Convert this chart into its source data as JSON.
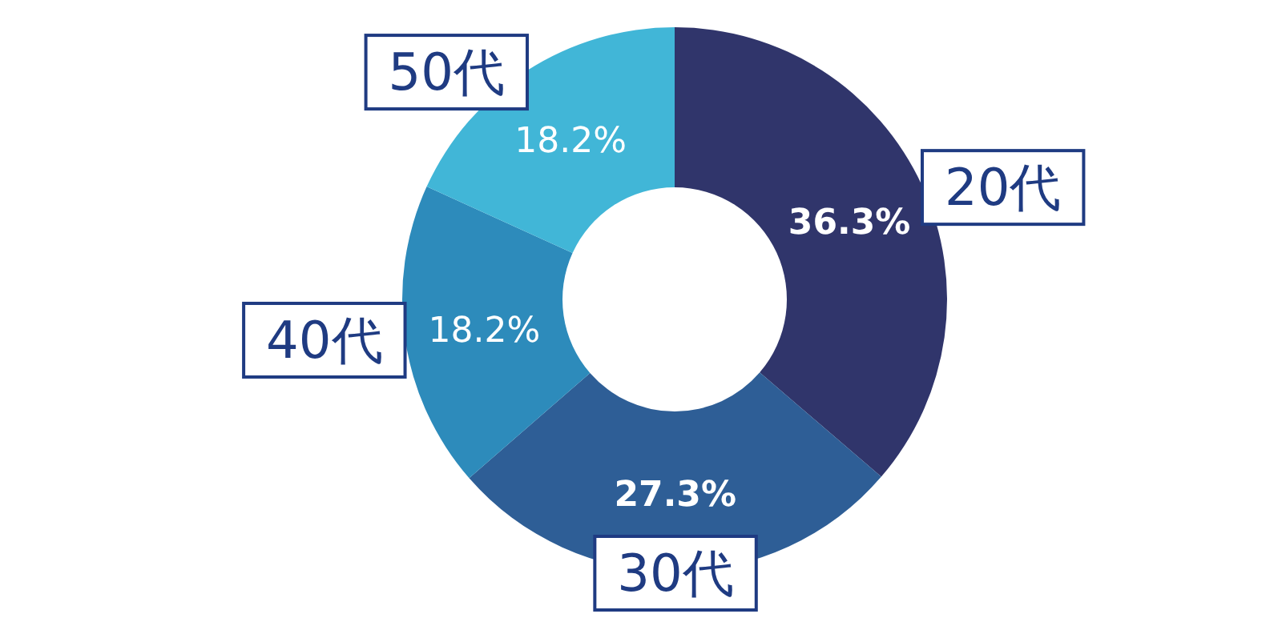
{
  "chart_data": {
    "type": "donut",
    "categories": [
      "20代",
      "30代",
      "40代",
      "50代"
    ],
    "values": [
      36.3,
      27.3,
      18.2,
      18.2
    ],
    "value_labels": [
      "36.3%",
      "27.3%",
      "18.2%",
      "18.2%"
    ],
    "colors": [
      "#30356b",
      "#2e5e96",
      "#2d8bbb",
      "#41b6d7"
    ]
  }
}
